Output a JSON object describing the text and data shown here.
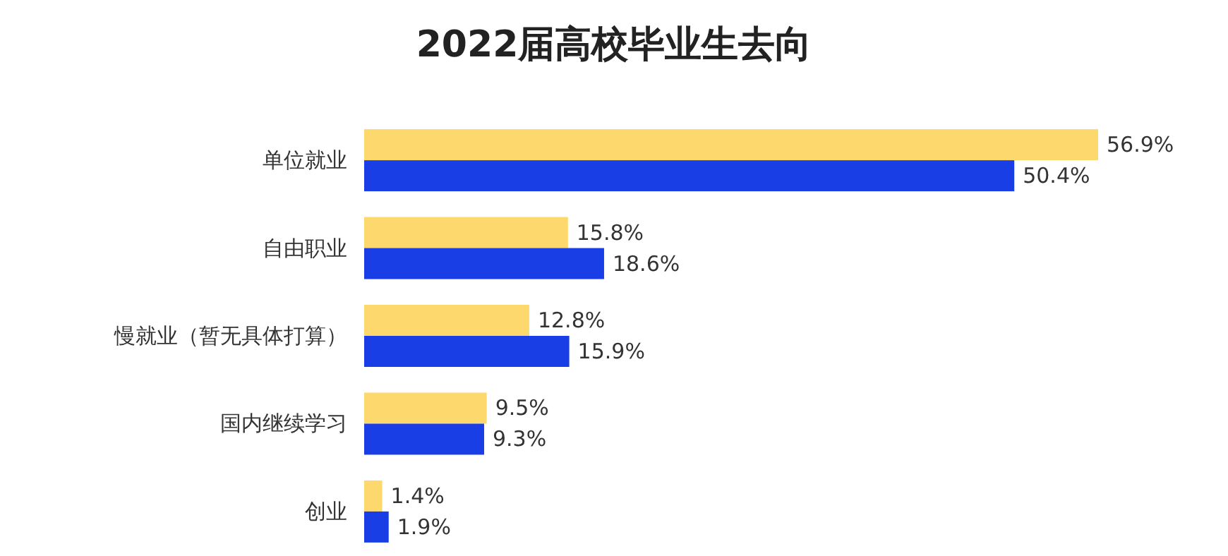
{
  "chart_data": {
    "type": "bar",
    "orientation": "horizontal",
    "title": "2022届高校毕业生去向",
    "categories": [
      "单位就业",
      "自由职业",
      "慢就业（暂无具体打算）",
      "国内继续学习",
      "创业"
    ],
    "series": [
      {
        "color": "#fdd86c",
        "values": [
          56.9,
          15.8,
          12.8,
          9.5,
          1.4
        ],
        "value_labels": [
          "56.9%",
          "15.8%",
          "12.8%",
          "9.5%",
          "1.4%"
        ]
      },
      {
        "color": "#1a3ee6",
        "values": [
          50.4,
          18.6,
          15.9,
          9.3,
          1.9
        ],
        "value_labels": [
          "50.4%",
          "18.6%",
          "15.9%",
          "9.3%",
          "1.9%"
        ]
      }
    ],
    "xlim": [
      0,
      56.9
    ],
    "tick_labels": "y"
  }
}
